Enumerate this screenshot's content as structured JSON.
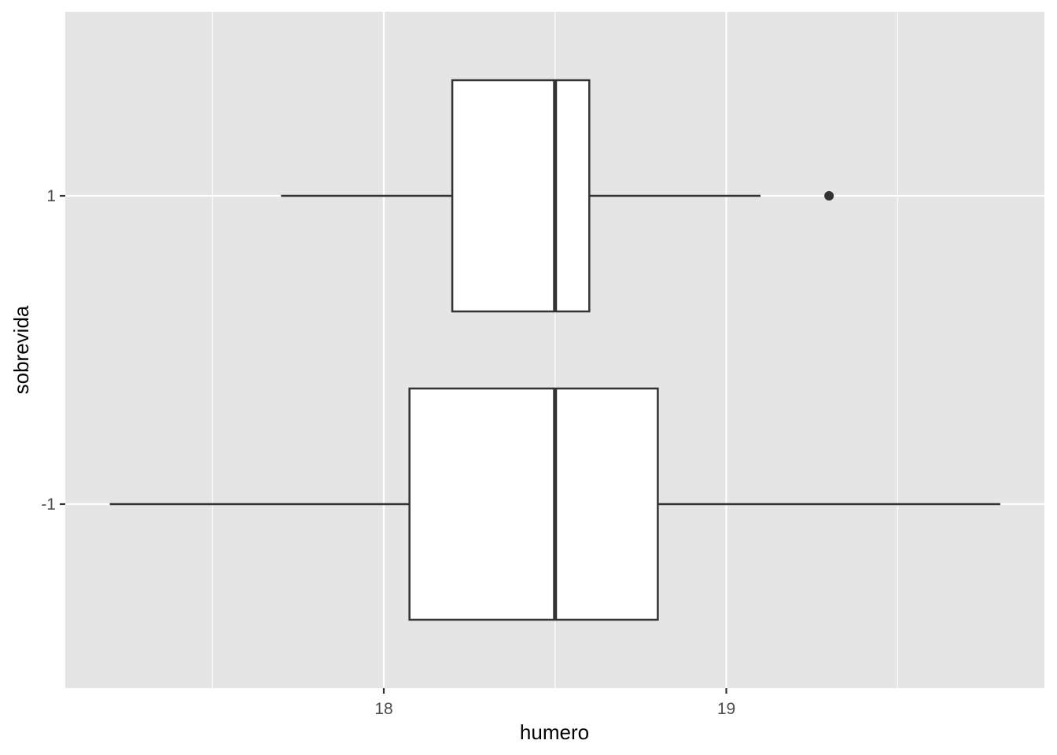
{
  "chart_data": {
    "type": "boxplot",
    "orientation": "horizontal",
    "xlabel": "humero",
    "ylabel": "sobrevida",
    "xlim": [
      17.0,
      19.87
    ],
    "x_ticks": [
      18,
      19
    ],
    "x_minor_ticks": [
      17.5,
      18.5,
      19.5
    ],
    "categories": [
      "1",
      "-1"
    ],
    "series": [
      {
        "category": "1",
        "whisker_low": 17.7,
        "q1": 18.2,
        "median": 18.5,
        "q3": 18.6,
        "whisker_high": 19.1,
        "outliers": [
          19.3
        ]
      },
      {
        "category": "-1",
        "whisker_low": 17.2,
        "q1": 18.075,
        "median": 18.5,
        "q3": 18.8,
        "whisker_high": 19.8,
        "outliers": []
      }
    ],
    "grid": true,
    "legend": "none",
    "colors": {
      "panel_background": "#e5e5e5",
      "grid_line": "#ffffff",
      "box_fill": "#ffffff",
      "box_stroke": "#333333",
      "tick_label": "#4d4d4d",
      "axis_title": "#000000"
    }
  }
}
